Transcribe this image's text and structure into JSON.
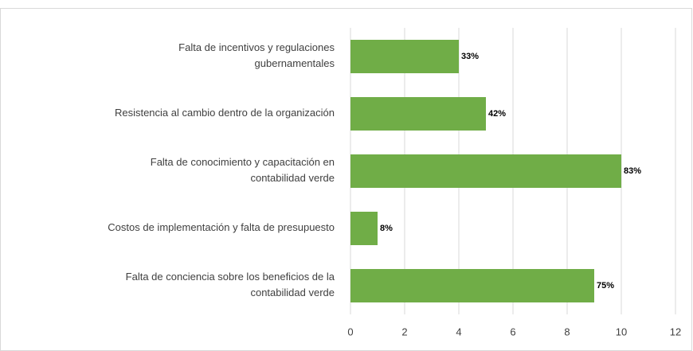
{
  "chart_data": {
    "type": "bar",
    "orientation": "horizontal",
    "categories": [
      "Falta de incentivos y regulaciones gubernamentales",
      "Resistencia al cambio dentro de la organización",
      "Falta de conocimiento y capacitación en contabilidad verde",
      "Costos de implementación y falta de presupuesto",
      "Falta de conciencia sobre los beneficios de la contabilidad verde"
    ],
    "values": [
      4,
      5,
      10,
      1,
      9
    ],
    "value_labels": [
      "33%",
      "42%",
      "83%",
      "8%",
      "75%"
    ],
    "color": "#70ad47",
    "xlim": [
      0,
      12
    ],
    "xticks": [
      0,
      2,
      4,
      6,
      8,
      10,
      12
    ],
    "grid": true
  }
}
